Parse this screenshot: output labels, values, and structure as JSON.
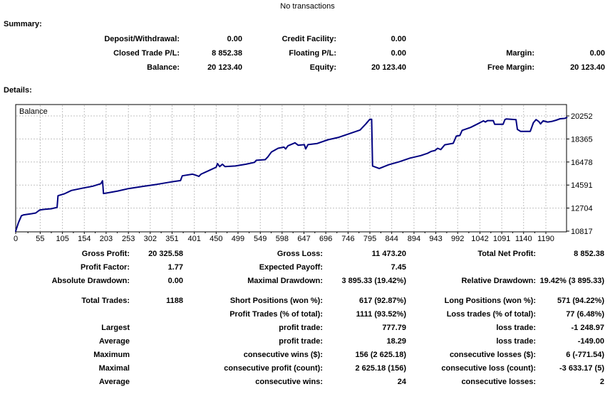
{
  "title": "No transactions",
  "summary": {
    "heading": "Summary:",
    "rows": [
      {
        "cells": [
          {
            "label": "Deposit/Withdrawal:",
            "value": "0.00"
          },
          {
            "label": "Credit Facility:",
            "value": "0.00"
          },
          {
            "label": "",
            "value": ""
          }
        ]
      },
      {
        "cells": [
          {
            "label": "Closed Trade P/L:",
            "value": "8 852.38"
          },
          {
            "label": "Floating P/L:",
            "value": "0.00"
          },
          {
            "label": "Margin:",
            "value": "0.00"
          }
        ]
      },
      {
        "cells": [
          {
            "label": "Balance:",
            "value": "20 123.40"
          },
          {
            "label": "Equity:",
            "value": "20 123.40"
          },
          {
            "label": "Free Margin:",
            "value": "20 123.40"
          }
        ]
      }
    ]
  },
  "details_heading": "Details:",
  "stats": {
    "rows": [
      {
        "cells": [
          {
            "label": "Gross Profit:",
            "value": "20 325.58"
          },
          {
            "label": "Gross Loss:",
            "value": "11 473.20"
          },
          {
            "label": "Total Net Profit:",
            "value": "8 852.38"
          }
        ]
      },
      {
        "cells": [
          {
            "label": "Profit Factor:",
            "value": "1.77"
          },
          {
            "label": "Expected Payoff:",
            "value": "7.45"
          },
          {
            "label": "",
            "value": ""
          }
        ]
      },
      {
        "cells": [
          {
            "label": "Absolute Drawdown:",
            "value": "0.00"
          },
          {
            "label": "Maximal Drawdown:",
            "value": "3 895.33 (19.42%)"
          },
          {
            "label": "Relative Drawdown:",
            "value": "19.42% (3 895.33)"
          }
        ]
      },
      {
        "gap_before": true,
        "cells": [
          {
            "label": "Total Trades:",
            "value": "1188"
          },
          {
            "label": "Short Positions (won %):",
            "value": "617 (92.87%)"
          },
          {
            "label": "Long Positions (won %):",
            "value": "571 (94.22%)"
          }
        ]
      },
      {
        "cells": [
          {
            "label": "",
            "value": ""
          },
          {
            "label": "Profit Trades (% of total):",
            "value": "1111 (93.52%)"
          },
          {
            "label": "Loss trades (% of total):",
            "value": "77 (6.48%)"
          }
        ]
      },
      {
        "cells": [
          {
            "label": "Largest",
            "value": ""
          },
          {
            "label": "profit trade:",
            "value": "777.79"
          },
          {
            "label": "loss trade:",
            "value": "-1 248.97"
          }
        ]
      },
      {
        "cells": [
          {
            "label": "Average",
            "value": ""
          },
          {
            "label": "profit trade:",
            "value": "18.29"
          },
          {
            "label": "loss trade:",
            "value": "-149.00"
          }
        ]
      },
      {
        "cells": [
          {
            "label": "Maximum",
            "value": ""
          },
          {
            "label": "consecutive wins ($):",
            "value": "156 (2 625.18)"
          },
          {
            "label": "consecutive losses ($):",
            "value": "6 (-771.54)"
          }
        ]
      },
      {
        "cells": [
          {
            "label": "Maximal",
            "value": ""
          },
          {
            "label": "consecutive profit (count):",
            "value": "2 625.18 (156)"
          },
          {
            "label": "consecutive loss (count):",
            "value": "-3 633.17 (5)"
          }
        ]
      },
      {
        "cells": [
          {
            "label": "Average",
            "value": ""
          },
          {
            "label": "consecutive wins:",
            "value": "24"
          },
          {
            "label": "consecutive losses:",
            "value": "2"
          }
        ]
      }
    ]
  },
  "chart_data": {
    "type": "line",
    "title": "Balance",
    "xlabel": "",
    "ylabel": "",
    "legend": false,
    "grid": true,
    "line_color": "#000080",
    "grid_color": "#c0c0c0",
    "x_ticks": [
      0,
      55,
      105,
      154,
      203,
      253,
      302,
      351,
      401,
      450,
      499,
      549,
      598,
      647,
      696,
      746,
      795,
      844,
      894,
      943,
      992,
      1042,
      1091,
      1140,
      1190
    ],
    "y_ticks": [
      20252,
      18365,
      16478,
      14591,
      12704,
      10817
    ],
    "x_range": [
      0,
      1237
    ],
    "y_range": [
      10817,
      20252
    ],
    "points": [
      [
        0,
        10817
      ],
      [
        6,
        11500
      ],
      [
        13,
        12080
      ],
      [
        18,
        12150
      ],
      [
        37,
        12250
      ],
      [
        45,
        12300
      ],
      [
        54,
        12550
      ],
      [
        64,
        12600
      ],
      [
        80,
        12650
      ],
      [
        93,
        12760
      ],
      [
        95,
        13720
      ],
      [
        109,
        13870
      ],
      [
        125,
        14150
      ],
      [
        149,
        14330
      ],
      [
        173,
        14500
      ],
      [
        191,
        14700
      ],
      [
        195,
        14940
      ],
      [
        197,
        13900
      ],
      [
        208,
        13960
      ],
      [
        229,
        14100
      ],
      [
        253,
        14300
      ],
      [
        285,
        14480
      ],
      [
        317,
        14650
      ],
      [
        349,
        14850
      ],
      [
        370,
        14960
      ],
      [
        374,
        15350
      ],
      [
        397,
        15480
      ],
      [
        406,
        15380
      ],
      [
        411,
        15300
      ],
      [
        416,
        15480
      ],
      [
        432,
        15750
      ],
      [
        450,
        16050
      ],
      [
        453,
        16350
      ],
      [
        458,
        16100
      ],
      [
        464,
        16300
      ],
      [
        470,
        16100
      ],
      [
        493,
        16150
      ],
      [
        517,
        16300
      ],
      [
        536,
        16450
      ],
      [
        540,
        16620
      ],
      [
        560,
        16670
      ],
      [
        566,
        16900
      ],
      [
        574,
        17300
      ],
      [
        589,
        17600
      ],
      [
        602,
        17700
      ],
      [
        606,
        17550
      ],
      [
        611,
        17800
      ],
      [
        627,
        18050
      ],
      [
        634,
        17850
      ],
      [
        648,
        17900
      ],
      [
        651,
        17550
      ],
      [
        656,
        17900
      ],
      [
        677,
        18000
      ],
      [
        701,
        18300
      ],
      [
        725,
        18500
      ],
      [
        749,
        18800
      ],
      [
        773,
        19100
      ],
      [
        786,
        19600
      ],
      [
        795,
        19980
      ],
      [
        799,
        19980
      ],
      [
        801,
        16150
      ],
      [
        808,
        16050
      ],
      [
        816,
        15950
      ],
      [
        837,
        16250
      ],
      [
        861,
        16500
      ],
      [
        885,
        16800
      ],
      [
        909,
        17000
      ],
      [
        925,
        17200
      ],
      [
        933,
        17350
      ],
      [
        941,
        17420
      ],
      [
        947,
        17600
      ],
      [
        954,
        17500
      ],
      [
        963,
        17890
      ],
      [
        973,
        17950
      ],
      [
        982,
        18010
      ],
      [
        989,
        18600
      ],
      [
        997,
        18650
      ],
      [
        1002,
        19070
      ],
      [
        1021,
        19310
      ],
      [
        1037,
        19600
      ],
      [
        1050,
        19850
      ],
      [
        1054,
        19750
      ],
      [
        1059,
        19870
      ],
      [
        1072,
        19870
      ],
      [
        1075,
        19570
      ],
      [
        1094,
        19570
      ],
      [
        1098,
        19950
      ],
      [
        1101,
        20000
      ],
      [
        1123,
        19950
      ],
      [
        1126,
        19150
      ],
      [
        1133,
        18990
      ],
      [
        1155,
        18990
      ],
      [
        1162,
        19700
      ],
      [
        1168,
        19950
      ],
      [
        1174,
        19800
      ],
      [
        1178,
        19600
      ],
      [
        1184,
        19850
      ],
      [
        1194,
        19750
      ],
      [
        1203,
        19800
      ],
      [
        1213,
        19900
      ],
      [
        1222,
        20020
      ],
      [
        1232,
        20050
      ],
      [
        1237,
        20123
      ]
    ]
  }
}
